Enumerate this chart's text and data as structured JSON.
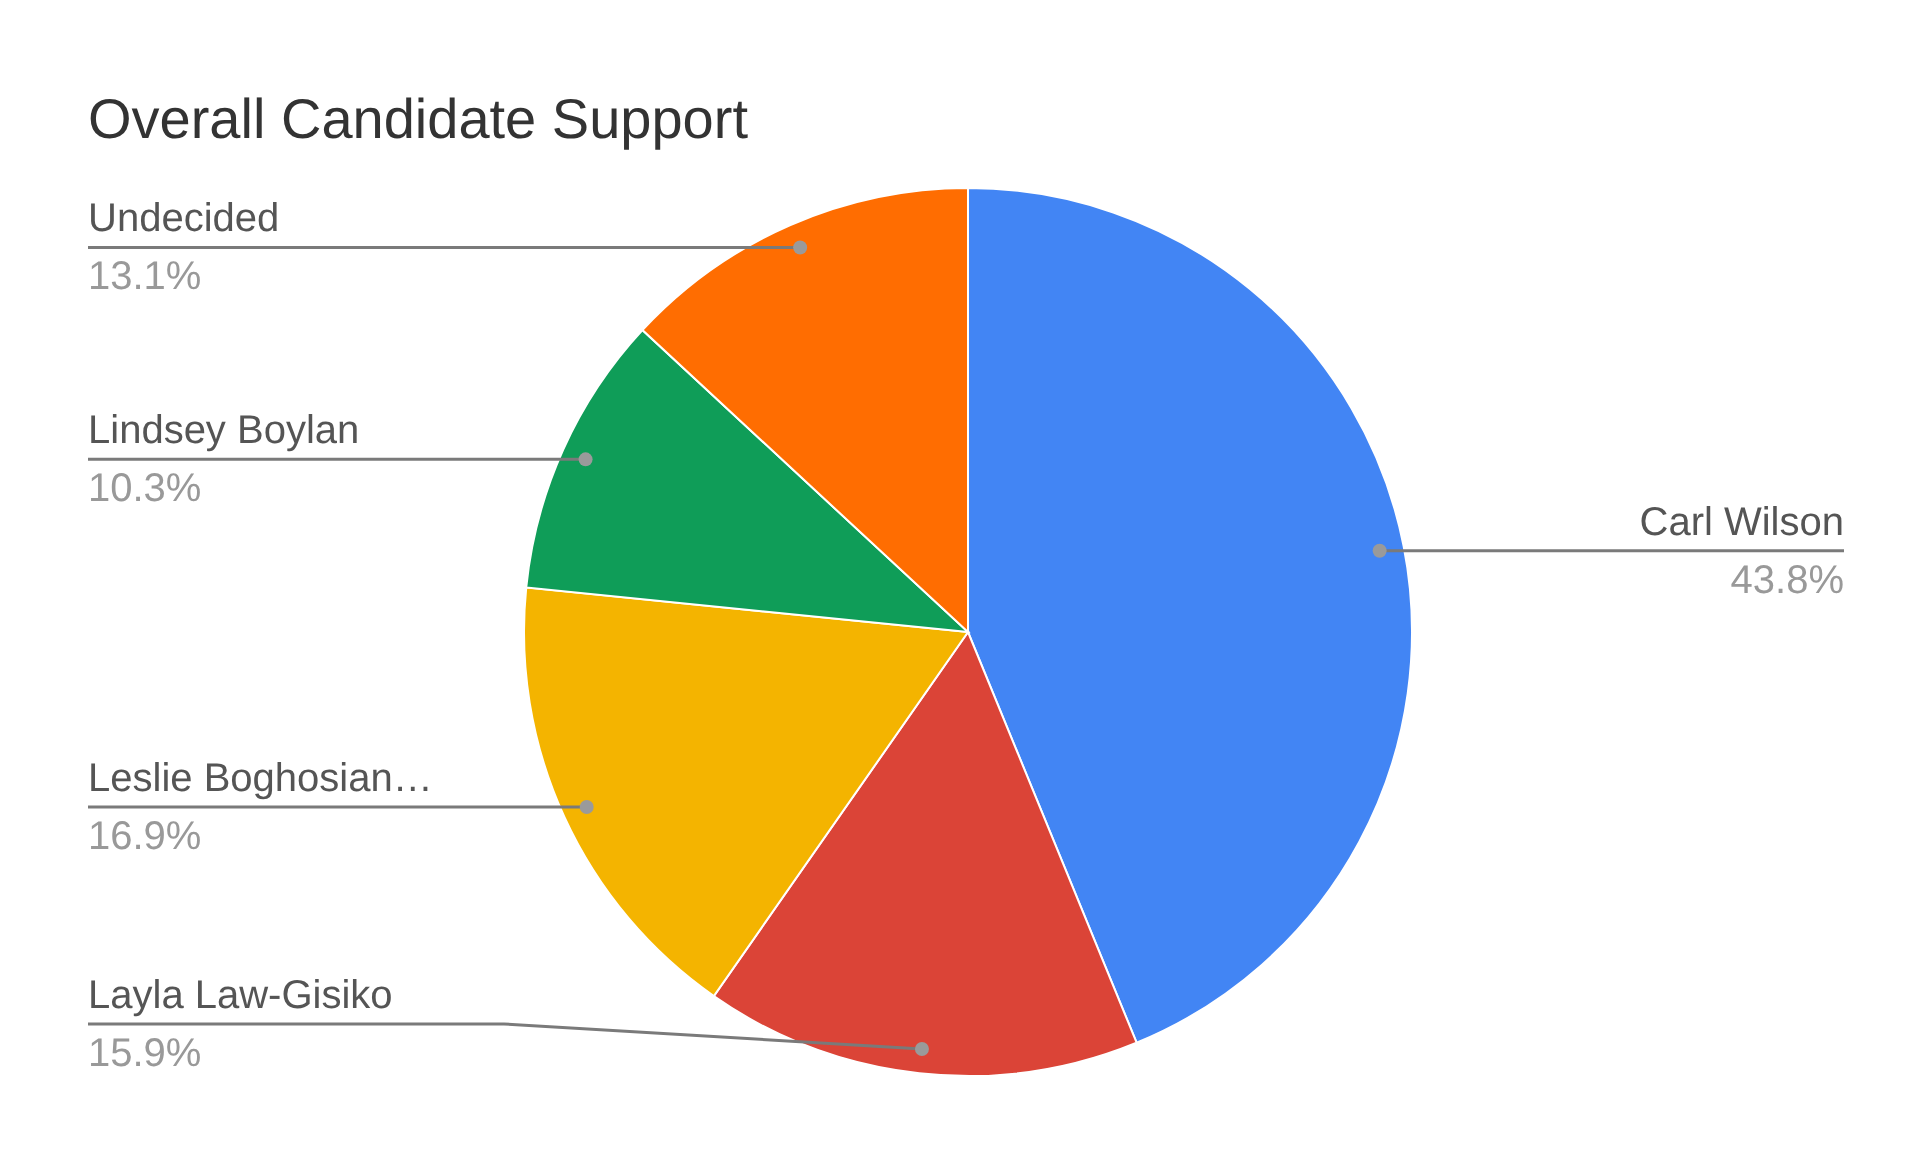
{
  "chart_data": {
    "type": "pie",
    "title": "Overall Candidate Support",
    "categories": [
      "Carl Wilson",
      "Layla Law-Gisiko",
      "Leslie Boghosian…",
      "Lindsey Boylan",
      "Undecided"
    ],
    "values": [
      43.8,
      15.9,
      16.9,
      10.3,
      13.1
    ],
    "colors": [
      "#4285f4",
      "#db4437",
      "#f4b400",
      "#0f9d58",
      "#ff6d01"
    ],
    "value_labels": [
      "43.8%",
      "15.9%",
      "16.9%",
      "10.3%",
      "13.1%"
    ]
  }
}
